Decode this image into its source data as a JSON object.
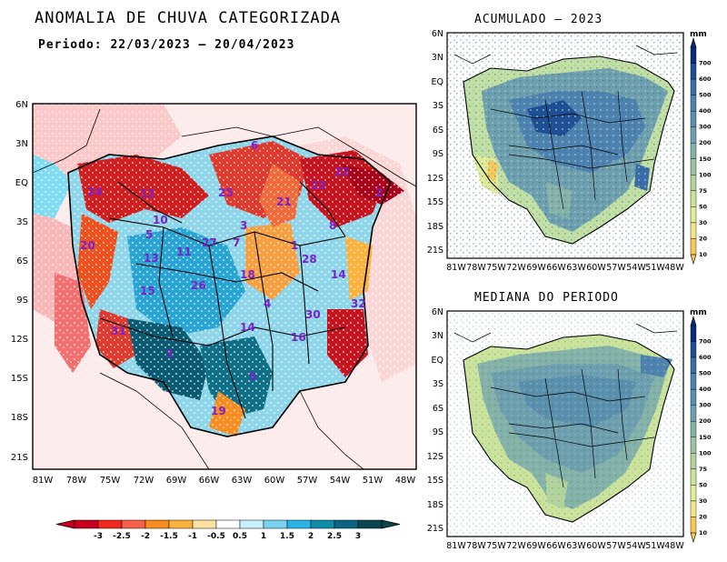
{
  "main_map": {
    "title": "ANOMALIA DE CHUVA CATEGORIZADA",
    "period": "Periodo: 22/03/2023 – 20/04/2023",
    "lat_labels": [
      "6N",
      "3N",
      "EQ",
      "3S",
      "6S",
      "9S",
      "12S",
      "15S",
      "18S",
      "21S"
    ],
    "lon_labels": [
      "81W",
      "78W",
      "75W",
      "72W",
      "69W",
      "66W",
      "63W",
      "60W",
      "57W",
      "54W",
      "51W",
      "48W"
    ],
    "basin_numbers": [
      "6",
      "22",
      "24",
      "12",
      "25",
      "23",
      "21",
      "2",
      "10",
      "3",
      "8",
      "20",
      "13",
      "11",
      "27",
      "7",
      "1",
      "28",
      "5",
      "18",
      "14",
      "15",
      "26",
      "4",
      "32",
      "30",
      "31",
      "3",
      "16",
      "14",
      "9",
      "19"
    ],
    "colorbar": {
      "labels": [
        "-3",
        "-2.5",
        "-2",
        "-1.5",
        "-1",
        "-0.5",
        "0.5",
        "1",
        "1.5",
        "2",
        "2.5",
        "3"
      ],
      "colors": [
        "#c8001e",
        "#f0281e",
        "#f5604a",
        "#f88c1e",
        "#fdb23c",
        "#fde1a0",
        "#ffffff",
        "#c8f0ff",
        "#78d2f0",
        "#28b4e6",
        "#0f8caa",
        "#0a6482",
        "#0a4650"
      ]
    }
  },
  "accumulated_map": {
    "title": "ACUMULADO – 2023",
    "lat_labels": [
      "6N",
      "3N",
      "EQ",
      "3S",
      "6S",
      "9S",
      "12S",
      "15S",
      "18S",
      "21S"
    ],
    "lon_labels": [
      "81W",
      "78W",
      "75W",
      "72W",
      "69W",
      "66W",
      "63W",
      "60W",
      "57W",
      "54W",
      "51W",
      "48W"
    ],
    "colorbar": {
      "unit": "mm",
      "labels": [
        "700",
        "600",
        "500",
        "400",
        "300",
        "200",
        "150",
        "100",
        "75",
        "50",
        "30",
        "20",
        "10"
      ],
      "colors": [
        "#0a2c78",
        "#1e4f96",
        "#3a6ca8",
        "#4e82b0",
        "#5a8fae",
        "#6e9fae",
        "#85b2a8",
        "#9ac3a2",
        "#b2d49c",
        "#cbe39a",
        "#e2ec98",
        "#f2e68a",
        "#f8c85a"
      ]
    }
  },
  "median_map": {
    "title": "MEDIANA DO PERIODO",
    "lat_labels": [
      "6N",
      "3N",
      "EQ",
      "3S",
      "6S",
      "9S",
      "12S",
      "15S",
      "18S",
      "21S"
    ],
    "lon_labels": [
      "81W",
      "78W",
      "75W",
      "72W",
      "69W",
      "66W",
      "63W",
      "60W",
      "57W",
      "54W",
      "51W",
      "48W"
    ],
    "colorbar": {
      "unit": "mm",
      "labels": [
        "700",
        "600",
        "500",
        "400",
        "300",
        "200",
        "150",
        "100",
        "75",
        "50",
        "30",
        "20",
        "10"
      ],
      "colors": [
        "#0a2c78",
        "#1e4f96",
        "#3a6ca8",
        "#4e82b0",
        "#5a8fae",
        "#6e9fae",
        "#85b2a8",
        "#9ac3a2",
        "#b2d49c",
        "#cbe39a",
        "#e2ec98",
        "#f2e68a",
        "#f8c85a"
      ]
    }
  }
}
